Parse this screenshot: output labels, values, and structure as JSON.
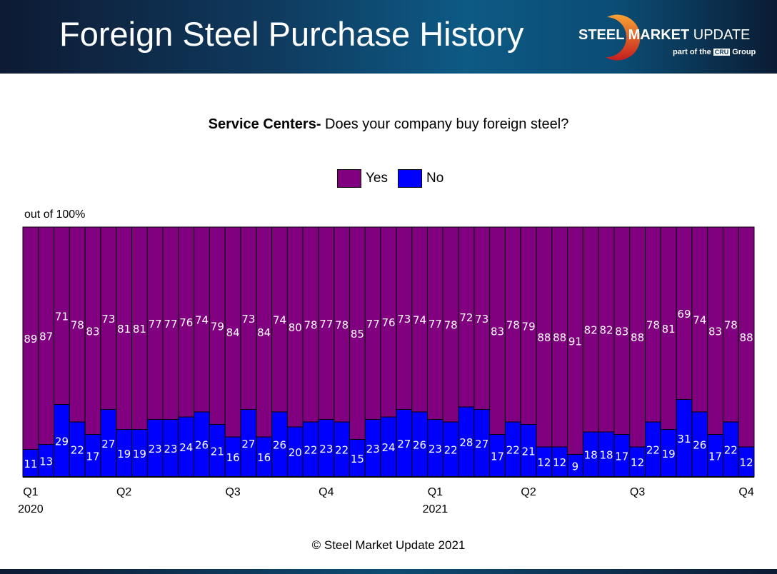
{
  "header": {
    "title": "Foreign Steel Purchase History",
    "logo_text": "STEEL MARKET UPDATE",
    "logo_sub": "part of the CRU Group"
  },
  "chart_data": {
    "type": "bar",
    "stacked": true,
    "title_bold": "Service Centers-",
    "title_rest": " Does your company buy foreign steel?",
    "ylabel": "out of 100%",
    "ylim": [
      0,
      100
    ],
    "grid": false,
    "legend_placement": "top",
    "x_tick_labels": [
      {
        "index": 0,
        "label": "Q1",
        "year": "2020"
      },
      {
        "index": 6,
        "label": "Q2",
        "year": ""
      },
      {
        "index": 13,
        "label": "Q3",
        "year": ""
      },
      {
        "index": 19,
        "label": "Q4",
        "year": ""
      },
      {
        "index": 26,
        "label": "Q1",
        "year": "2021"
      },
      {
        "index": 32,
        "label": "Q2",
        "year": ""
      },
      {
        "index": 39,
        "label": "Q3",
        "year": ""
      },
      {
        "index": 46,
        "label": "Q4",
        "year": ""
      }
    ],
    "series": [
      {
        "name": "No",
        "color": "#0000ff",
        "values": [
          11,
          13,
          29,
          22,
          17,
          27,
          19,
          19,
          23,
          23,
          24,
          26,
          21,
          16,
          27,
          16,
          26,
          20,
          22,
          23,
          22,
          15,
          23,
          24,
          27,
          26,
          23,
          22,
          28,
          27,
          17,
          22,
          21,
          12,
          12,
          9,
          18,
          18,
          17,
          12,
          22,
          19,
          31,
          26,
          17,
          22,
          12
        ]
      },
      {
        "name": "Yes",
        "color": "#800080",
        "values": [
          89,
          87,
          71,
          78,
          83,
          73,
          81,
          81,
          77,
          77,
          76,
          74,
          79,
          84,
          73,
          84,
          74,
          80,
          78,
          77,
          78,
          85,
          77,
          76,
          73,
          74,
          77,
          78,
          72,
          73,
          83,
          78,
          79,
          88,
          88,
          91,
          82,
          82,
          83,
          88,
          78,
          81,
          69,
          74,
          83,
          78,
          88
        ]
      }
    ]
  },
  "footer": {
    "copyright": "© Steel Market Update 2021"
  }
}
